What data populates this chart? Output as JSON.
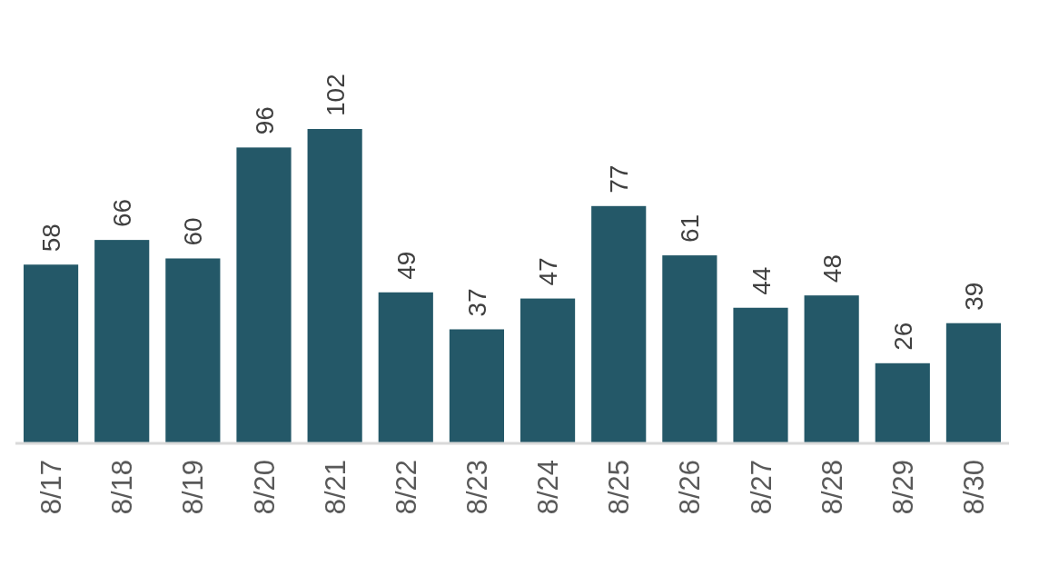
{
  "chart_data": {
    "type": "bar",
    "categories": [
      "8/17",
      "8/18",
      "8/19",
      "8/20",
      "8/21",
      "8/22",
      "8/23",
      "8/24",
      "8/25",
      "8/26",
      "8/27",
      "8/28",
      "8/29",
      "8/30"
    ],
    "values": [
      58,
      66,
      60,
      96,
      102,
      49,
      37,
      47,
      77,
      61,
      44,
      48,
      26,
      39
    ],
    "color": "#245868",
    "data_labels": true
  }
}
